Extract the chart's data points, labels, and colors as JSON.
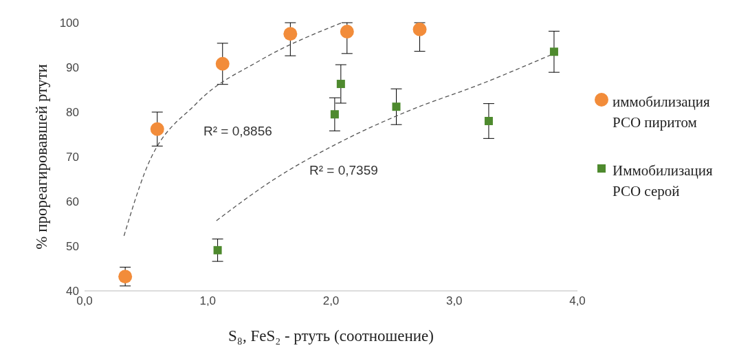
{
  "chart_data": {
    "type": "scatter",
    "xlabel": "S₈, FeS₂ - ртуть (соотношение)",
    "ylabel": "% прореагировавшей ртути",
    "xlim": [
      0,
      4
    ],
    "xticks": [
      {
        "value": 0,
        "label": "0,0"
      },
      {
        "value": 1,
        "label": "1,0"
      },
      {
        "value": 2,
        "label": "2,0"
      },
      {
        "value": 3,
        "label": "3,0"
      },
      {
        "value": 4,
        "label": "4,0"
      }
    ],
    "ylim": [
      40,
      100
    ],
    "yticks": [
      40,
      50,
      60,
      70,
      80,
      90,
      100
    ],
    "legend": "right",
    "annotations": [
      "R² = 0,8856",
      "R² = 0,7359"
    ],
    "series": [
      {
        "name": "иммобилизация РСО пиритом",
        "color": "#f28c3a",
        "marker": "circle",
        "x": [
          0.33,
          0.59,
          1.12,
          1.67,
          2.13,
          2.72
        ],
        "values": [
          43.2,
          76.2,
          90.8,
          97.5,
          98,
          98.5
        ],
        "errors": [
          2.1,
          3.8,
          4.6,
          [
            92.6,
            100
          ],
          [
            93.1,
            100
          ],
          [
            93.6,
            100
          ]
        ]
      },
      {
        "name": "Иммобилизация РСО серой",
        "color": "#4e8a2e",
        "marker": "square",
        "x": [
          1.08,
          2.03,
          2.08,
          2.53,
          3.28,
          3.81
        ],
        "values": [
          49.1,
          79.5,
          86.3,
          81.2,
          78,
          93.5
        ],
        "errors": [
          2.5,
          3.7,
          4.3,
          4,
          3.9,
          4.6
        ]
      },
      {
        "type": "line",
        "color": "#555555",
        "marker": "none",
        "line_style": "dashed",
        "x": [
          0.32,
          0.49,
          0.91,
          1.42,
          2.09
        ],
        "values": [
          52.3,
          66.6,
          82,
          91.5,
          100
        ]
      },
      {
        "type": "line",
        "color": "#555555",
        "marker": "none",
        "line_style": "dashed",
        "x": [
          1.07,
          1.53,
          2.09,
          2.65,
          3.21,
          3.81
        ],
        "values": [
          55.7,
          64.8,
          73.5,
          80.5,
          86.2,
          93.1
        ]
      }
    ]
  }
}
